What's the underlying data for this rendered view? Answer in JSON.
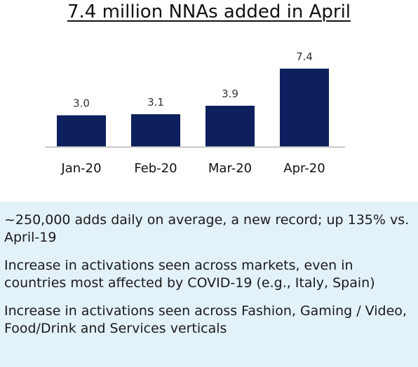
{
  "chart_data": {
    "type": "bar",
    "title": "7.4 million NNAs added in April",
    "categories": [
      "Jan-20",
      "Feb-20",
      "Mar-20",
      "Apr-20"
    ],
    "values": [
      3.0,
      3.1,
      3.9,
      7.4
    ],
    "data_labels": [
      "3.0",
      "3.1",
      "3.9",
      "7.4"
    ],
    "ylim": [
      0,
      7.4
    ],
    "grid": false,
    "bar_color": "#0d1f5c"
  },
  "notes": [
    "~250,000 adds daily on average, a new record; up 135% vs. April-19",
    "Increase in activations seen across markets, even in countries most affected by COVID-19 (e.g., Italy, Spain)",
    "Increase in activations seen across Fashion, Gaming / Video, Food/Drink and Services verticals"
  ],
  "colors": {
    "panel_background": "#e3f1f9",
    "baseline": "#c8c8c8"
  }
}
